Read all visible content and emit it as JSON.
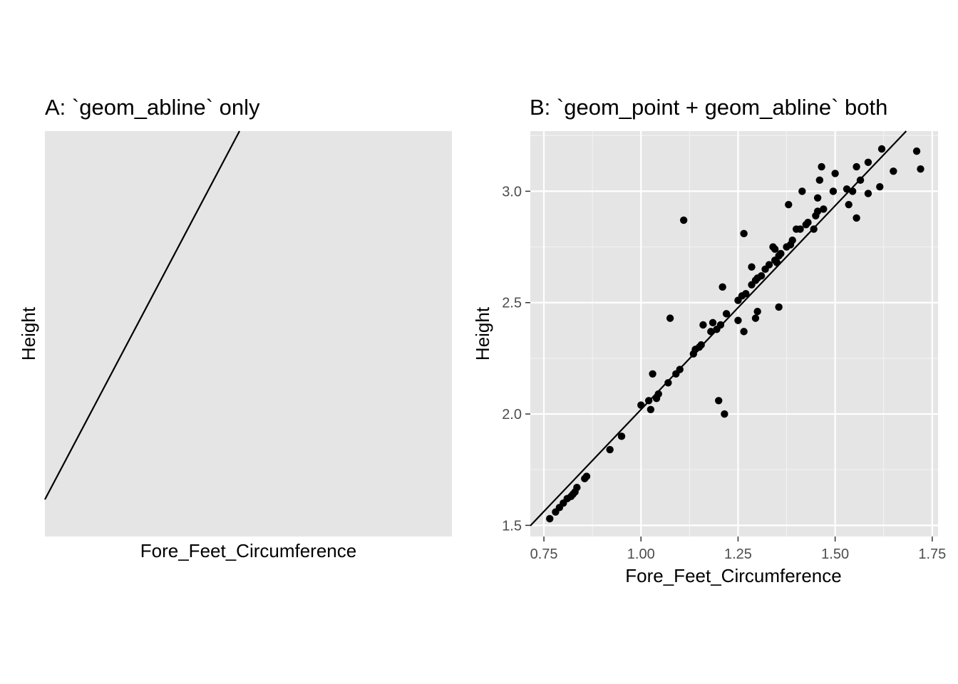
{
  "chart_data": [
    {
      "type": "line",
      "title": "A: `geom_abline` only",
      "xlabel": "Fore_Feet_Circumference",
      "ylabel": "Height",
      "panel_background": "#e5e5e5",
      "grid": false,
      "ticks_shown": false,
      "abline": {
        "description": "single straight reference line, no points, no axis scales"
      }
    },
    {
      "type": "scatter",
      "title": "B: `geom_point + geom_abline` both",
      "xlabel": "Fore_Feet_Circumference",
      "ylabel": "Height",
      "xlim": [
        0.715,
        1.765
      ],
      "ylim": [
        1.45,
        3.27
      ],
      "x_ticks": [
        0.75,
        1.0,
        1.25,
        1.5,
        1.75
      ],
      "x_tick_labels": [
        "0.75",
        "1.00",
        "1.25",
        "1.50",
        "1.75"
      ],
      "y_ticks": [
        1.5,
        2.0,
        2.5,
        3.0
      ],
      "y_tick_labels": [
        "1.5",
        "2.0",
        "2.5",
        "3.0"
      ],
      "grid": true,
      "panel_background": "#e5e5e5",
      "point_color": "#000000",
      "abline": {
        "slope": 1.83,
        "intercept": 0.19
      },
      "points": [
        [
          0.765,
          1.53
        ],
        [
          0.78,
          1.56
        ],
        [
          0.79,
          1.58
        ],
        [
          0.8,
          1.6
        ],
        [
          0.81,
          1.62
        ],
        [
          0.82,
          1.63
        ],
        [
          0.825,
          1.64
        ],
        [
          0.83,
          1.65
        ],
        [
          0.835,
          1.67
        ],
        [
          0.855,
          1.71
        ],
        [
          0.86,
          1.72
        ],
        [
          0.92,
          1.84
        ],
        [
          0.95,
          1.9
        ],
        [
          1.0,
          2.04
        ],
        [
          1.02,
          2.06
        ],
        [
          1.025,
          2.02
        ],
        [
          1.03,
          2.18
        ],
        [
          1.04,
          2.07
        ],
        [
          1.045,
          2.09
        ],
        [
          1.07,
          2.14
        ],
        [
          1.075,
          2.43
        ],
        [
          1.09,
          2.18
        ],
        [
          1.1,
          2.2
        ],
        [
          1.11,
          2.87
        ],
        [
          1.135,
          2.27
        ],
        [
          1.14,
          2.29
        ],
        [
          1.15,
          2.3
        ],
        [
          1.155,
          2.31
        ],
        [
          1.16,
          2.4
        ],
        [
          1.18,
          2.37
        ],
        [
          1.185,
          2.41
        ],
        [
          1.195,
          2.38
        ],
        [
          1.2,
          2.06
        ],
        [
          1.205,
          2.4
        ],
        [
          1.21,
          2.57
        ],
        [
          1.215,
          2.0
        ],
        [
          1.22,
          2.45
        ],
        [
          1.25,
          2.51
        ],
        [
          1.25,
          2.42
        ],
        [
          1.26,
          2.53
        ],
        [
          1.265,
          2.81
        ],
        [
          1.265,
          2.37
        ],
        [
          1.27,
          2.54
        ],
        [
          1.285,
          2.66
        ],
        [
          1.285,
          2.58
        ],
        [
          1.295,
          2.6
        ],
        [
          1.295,
          2.43
        ],
        [
          1.3,
          2.46
        ],
        [
          1.3,
          2.61
        ],
        [
          1.31,
          2.62
        ],
        [
          1.32,
          2.65
        ],
        [
          1.33,
          2.67
        ],
        [
          1.34,
          2.75
        ],
        [
          1.345,
          2.74
        ],
        [
          1.345,
          2.69
        ],
        [
          1.35,
          2.68
        ],
        [
          1.355,
          2.71
        ],
        [
          1.355,
          2.48
        ],
        [
          1.36,
          2.72
        ],
        [
          1.375,
          2.75
        ],
        [
          1.38,
          2.94
        ],
        [
          1.385,
          2.76
        ],
        [
          1.39,
          2.78
        ],
        [
          1.4,
          2.83
        ],
        [
          1.41,
          2.83
        ],
        [
          1.415,
          3.0
        ],
        [
          1.425,
          2.85
        ],
        [
          1.43,
          2.86
        ],
        [
          1.445,
          2.83
        ],
        [
          1.45,
          2.89
        ],
        [
          1.455,
          2.97
        ],
        [
          1.455,
          2.91
        ],
        [
          1.46,
          3.05
        ],
        [
          1.465,
          3.11
        ],
        [
          1.47,
          2.92
        ],
        [
          1.495,
          3.0
        ],
        [
          1.5,
          3.08
        ],
        [
          1.53,
          3.01
        ],
        [
          1.535,
          2.94
        ],
        [
          1.545,
          3.0
        ],
        [
          1.555,
          3.11
        ],
        [
          1.555,
          2.88
        ],
        [
          1.565,
          3.05
        ],
        [
          1.585,
          3.13
        ],
        [
          1.585,
          2.99
        ],
        [
          1.615,
          3.02
        ],
        [
          1.62,
          3.19
        ],
        [
          1.65,
          3.09
        ],
        [
          1.71,
          3.18
        ],
        [
          1.72,
          3.1
        ]
      ]
    }
  ]
}
